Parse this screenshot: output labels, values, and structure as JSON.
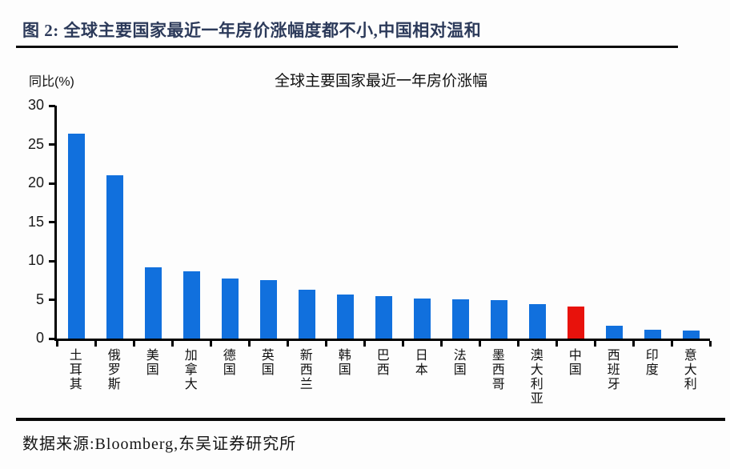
{
  "header": {
    "title": "图 2: 全球主要国家最近一年房价涨幅度都不小,中国相对温和"
  },
  "footer": {
    "source": "数据来源:Bloomberg,东吴证券研究所"
  },
  "chart_data": {
    "type": "bar",
    "title": "全球主要国家最近一年房价涨幅",
    "y_unit_label": "同比(%)",
    "categories": [
      "土耳其",
      "俄罗斯",
      "美国",
      "加拿大",
      "德国",
      "英国",
      "新西兰",
      "韩国",
      "巴西",
      "日本",
      "法国",
      "墨西哥",
      "澳大利亚",
      "中国",
      "西班牙",
      "印度",
      "意大利"
    ],
    "values": [
      26.4,
      21.0,
      9.2,
      8.7,
      7.7,
      7.5,
      6.3,
      5.7,
      5.5,
      5.2,
      5.1,
      5.0,
      4.4,
      4.1,
      1.7,
      1.1,
      1.0
    ],
    "highlight_category": "中国",
    "colors": {
      "bar_default": "#1170dd",
      "bar_highlight": "#e8120c",
      "axis": "#000000"
    },
    "ylim": [
      0,
      30
    ],
    "yticks": [
      0,
      5,
      10,
      15,
      20,
      25,
      30
    ],
    "xlabel": "",
    "ylabel": "同比(%)",
    "grid": false,
    "legend": "none"
  }
}
